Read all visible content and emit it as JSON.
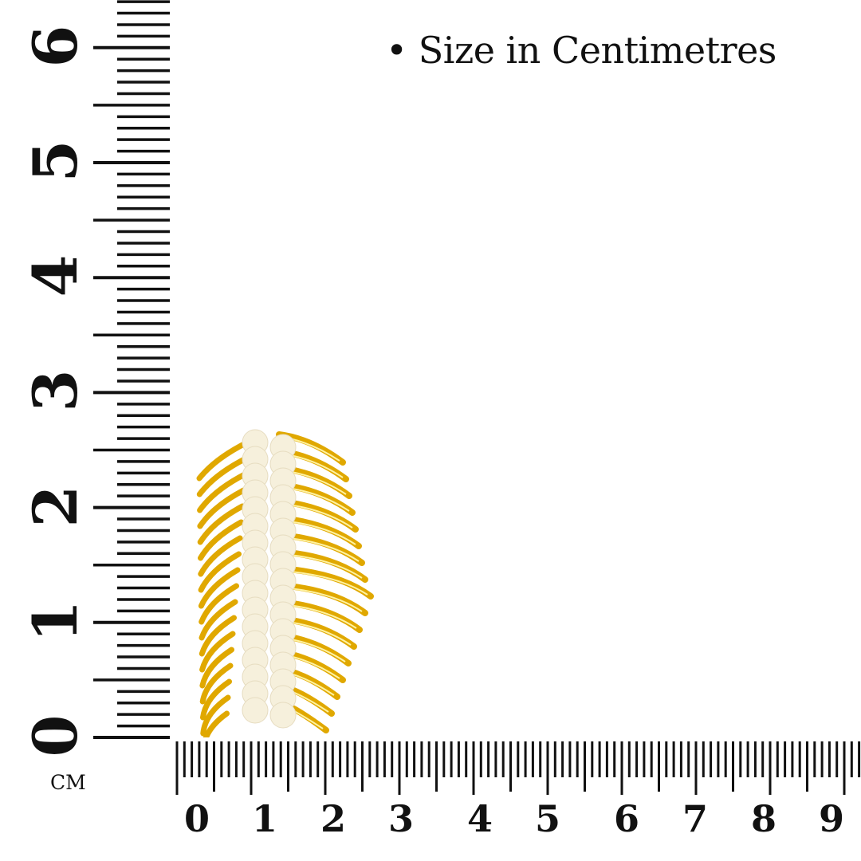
{
  "caption": "• Size in Centimetres",
  "unit_label": "cm",
  "vertical_ruler": {
    "labels": [
      "0",
      "1",
      "2",
      "3",
      "4",
      "5",
      "6"
    ]
  },
  "horizontal_ruler": {
    "labels": [
      "0",
      "1",
      "2",
      "3",
      "4",
      "5",
      "6",
      "7",
      "8",
      "9"
    ]
  },
  "product": {
    "description_icon": "gold-feather-pearl-earring",
    "colors": {
      "gold": "#e0a800",
      "pearl": "#f6f0dc"
    }
  }
}
